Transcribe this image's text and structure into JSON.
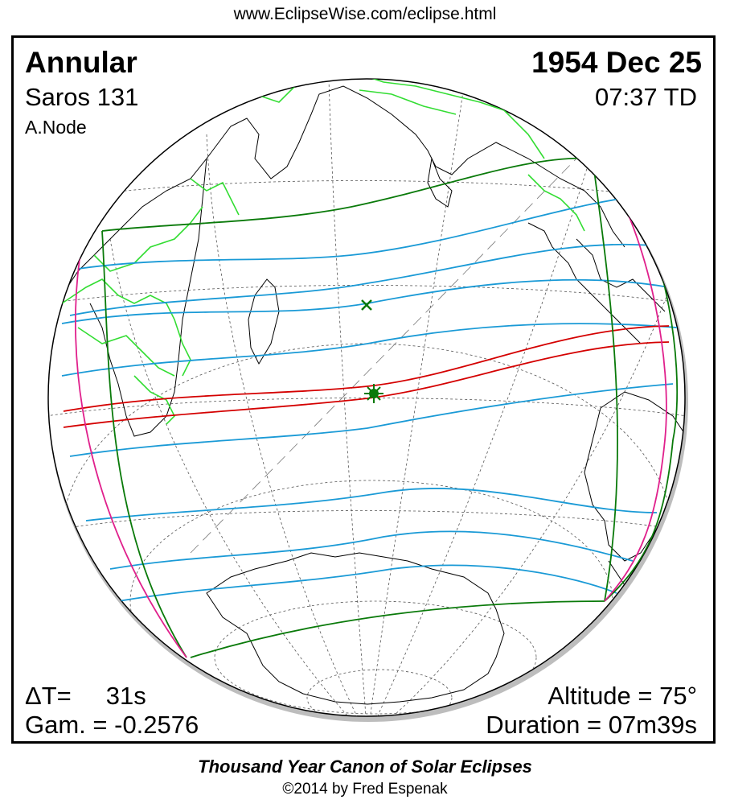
{
  "header": {
    "url": "www.EclipseWise.com/eclipse.html"
  },
  "eclipse": {
    "type": "Annular",
    "saros": "Saros 131",
    "node": "A.Node",
    "date": "1954 Dec 25",
    "time": "07:37 TD",
    "delta_t": "ΔT=     31s",
    "gamma": "Gam. = -0.2576",
    "altitude": "Altitude = 75°",
    "duration": "Duration = 07m39s"
  },
  "footer": {
    "title": "Thousand Year Canon of Solar Eclipses",
    "copyright": "©2014 by Fred Espenak"
  },
  "colors": {
    "central_path": "#d40000",
    "penumbral_limits": "#1a9ad6",
    "outer_limits": "#0a7a0a",
    "rise_set": "#e0208c",
    "borders": "#33dd33",
    "coast": "#000000",
    "grid": "#555555"
  },
  "markers": [
    "greatest-eclipse-icon",
    "subsolar-point-icon"
  ]
}
